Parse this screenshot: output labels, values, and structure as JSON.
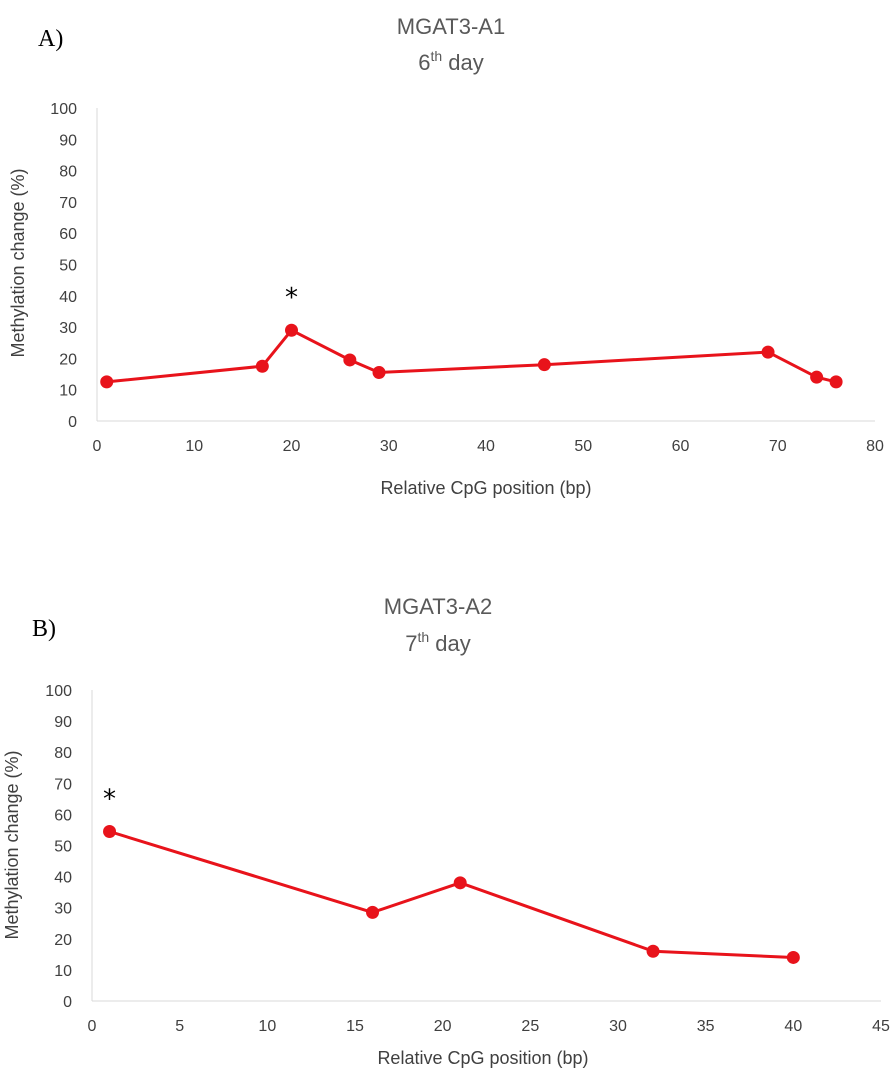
{
  "colors": {
    "series": "#e8131b",
    "axis": "#d9d9d9",
    "text": "#404040",
    "title": "#595959"
  },
  "chart_data": [
    {
      "type": "line",
      "panel_label": "A)",
      "title": "MGAT3-A1",
      "subtitle_number": "6",
      "subtitle_sup": "th",
      "subtitle_rest": " day",
      "xlabel": "Relative CpG position (bp)",
      "ylabel": "Methylation change (%)",
      "xlim": [
        0,
        80
      ],
      "ylim": [
        0,
        100
      ],
      "xticks": [
        0,
        10,
        20,
        30,
        40,
        50,
        60,
        70,
        80
      ],
      "yticks": [
        0,
        10,
        20,
        30,
        40,
        50,
        60,
        70,
        80,
        90,
        100
      ],
      "grid": false,
      "series": [
        {
          "x": [
            1,
            17,
            20,
            26,
            29,
            46,
            69,
            74,
            76
          ],
          "y": [
            12.5,
            17.5,
            29,
            19.5,
            15.5,
            18,
            22,
            14,
            12.5
          ]
        }
      ],
      "annotations": [
        {
          "text": "*",
          "x": 20
        }
      ]
    },
    {
      "type": "line",
      "panel_label": "B)",
      "title": "MGAT3-A2",
      "subtitle_number": "7",
      "subtitle_sup": "th",
      "subtitle_rest": " day",
      "xlabel": "Relative CpG position (bp)",
      "ylabel": "Methylation change (%)",
      "xlim": [
        0,
        45
      ],
      "ylim": [
        0,
        100
      ],
      "xticks": [
        0,
        5,
        10,
        15,
        20,
        25,
        30,
        35,
        40,
        45
      ],
      "yticks": [
        0,
        10,
        20,
        30,
        40,
        50,
        60,
        70,
        80,
        90,
        100
      ],
      "grid": false,
      "series": [
        {
          "x": [
            1,
            16,
            21,
            32,
            40
          ],
          "y": [
            54.5,
            28.5,
            38,
            16,
            14
          ]
        }
      ],
      "annotations": [
        {
          "text": "*",
          "x": 1
        }
      ]
    }
  ]
}
